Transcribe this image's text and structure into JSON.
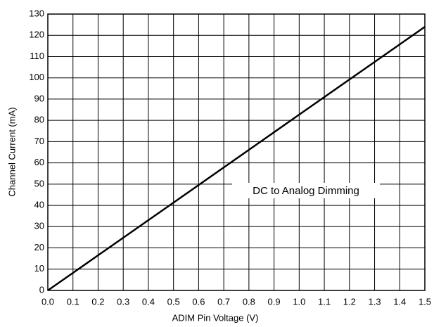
{
  "chart_data": {
    "type": "line",
    "x_label": "ADIM Pin Voltage (V)",
    "y_label": "Channel Current (mA)",
    "annotation": "DC to Analog Dimming",
    "x": [
      0,
      0.5,
      1.0,
      1.5
    ],
    "series": [
      {
        "color": "#000000",
        "values": [
          0,
          41.3,
          82.7,
          124
        ]
      }
    ],
    "xlim": [
      0,
      1.5
    ],
    "xticks": [
      {
        "value": 0,
        "label": "0.0"
      },
      0.1,
      0.2,
      0.3,
      0.4,
      0.5,
      0.6,
      0.7,
      0.8,
      0.9,
      {
        "value": 1,
        "label": "1.0"
      },
      1.1,
      1.2,
      1.3,
      1.4,
      1.5
    ],
    "ylim": [
      0,
      130
    ],
    "yticks": [
      0,
      10,
      20,
      30,
      40,
      50,
      60,
      70,
      80,
      90,
      100,
      110,
      120,
      130
    ],
    "grid": true
  }
}
